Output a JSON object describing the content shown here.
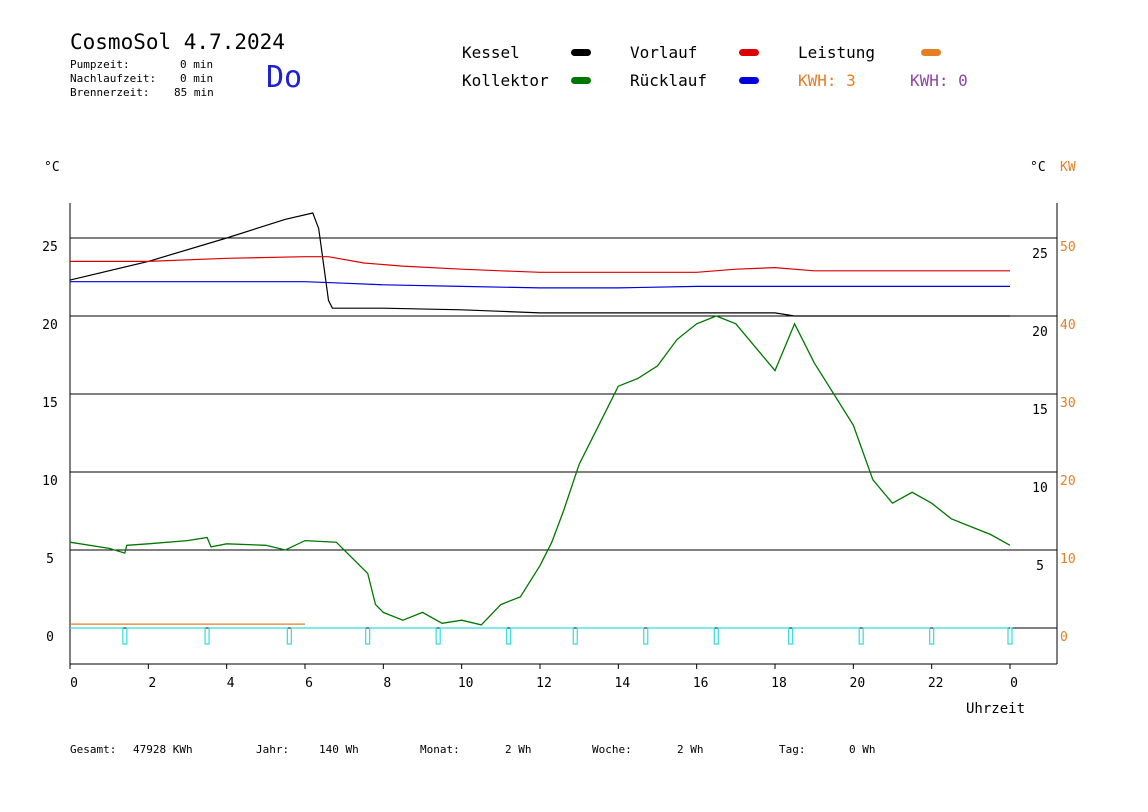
{
  "header": {
    "title": "CosmoSol 4.7.2024",
    "day": "Do",
    "pump_label": "Pumpzeit:",
    "pump_value": "0 min",
    "nachlauf_label": "Nachlaufzeit:",
    "nachlauf_value": "0 min",
    "brenner_label": "Brennerzeit:",
    "brenner_value": "85 min"
  },
  "legend": {
    "kessel": "Kessel",
    "kollektor": "Kollektor",
    "vorlauf": "Vorlauf",
    "ruecklauf": "Rücklauf",
    "leistung": "Leistung",
    "kwh1": "KWH: 3",
    "kwh2": "KWH: 0"
  },
  "colors": {
    "kessel": "#000000",
    "kollektor": "#007700",
    "vorlauf": "#dd0000",
    "ruecklauf": "#0000dd",
    "leistung": "#e67e22",
    "kwh2": "#8e44ad",
    "pump": "#33dddd"
  },
  "footer": {
    "gesamt_label": "Gesamt:",
    "gesamt_value": "47928 KWh",
    "jahr_label": "Jahr:",
    "jahr_value": "140 Wh",
    "monat_label": "Monat:",
    "monat_value": "2 Wh",
    "woche_label": "Woche:",
    "woche_value": "2 Wh",
    "tag_label": "Tag:",
    "tag_value": "0 Wh"
  },
  "chart_data": {
    "type": "line",
    "left_unit": "°C",
    "right_unit_c": "°C",
    "right_unit_kw": "KW",
    "xlabel": "Uhrzeit",
    "xlim": [
      0,
      24
    ],
    "ylim": [
      -2,
      27
    ],
    "grid": true,
    "x_ticks": [
      "0",
      "2",
      "4",
      "6",
      "8",
      "10",
      "12",
      "14",
      "16",
      "18",
      "20",
      "22",
      "0"
    ],
    "left_ticks": [
      "0",
      "5",
      "10",
      "15",
      "20",
      "25"
    ],
    "right_ticks": [
      "5",
      "10",
      "15",
      "20",
      "25"
    ],
    "kw_ticks": [
      "0",
      "10",
      "20",
      "30",
      "40",
      "50"
    ],
    "series": [
      {
        "name": "Kessel",
        "color": "#000000",
        "points": [
          [
            0,
            22.3
          ],
          [
            2,
            23.5
          ],
          [
            4,
            25.0
          ],
          [
            5.5,
            26.2
          ],
          [
            6.2,
            26.6
          ],
          [
            6.35,
            25.6
          ],
          [
            6.6,
            21.0
          ],
          [
            6.7,
            20.5
          ],
          [
            8,
            20.5
          ],
          [
            10,
            20.4
          ],
          [
            11,
            20.3
          ],
          [
            12,
            20.2
          ],
          [
            14,
            20.2
          ],
          [
            16,
            20.2
          ],
          [
            18,
            20.2
          ],
          [
            18.5,
            20.0
          ],
          [
            20,
            20.0
          ],
          [
            22,
            20.0
          ],
          [
            24,
            20.0
          ]
        ]
      },
      {
        "name": "Vorlauf",
        "color": "#dd0000",
        "points": [
          [
            0,
            23.5
          ],
          [
            2,
            23.5
          ],
          [
            4,
            23.7
          ],
          [
            6,
            23.8
          ],
          [
            6.6,
            23.8
          ],
          [
            7.5,
            23.4
          ],
          [
            8.5,
            23.2
          ],
          [
            10,
            23.0
          ],
          [
            11,
            22.9
          ],
          [
            12,
            22.8
          ],
          [
            14,
            22.8
          ],
          [
            16,
            22.8
          ],
          [
            17,
            23.0
          ],
          [
            18,
            23.1
          ],
          [
            19,
            22.9
          ],
          [
            20,
            22.9
          ],
          [
            22,
            22.9
          ],
          [
            24,
            22.9
          ]
        ]
      },
      {
        "name": "Rücklauf",
        "color": "#0000dd",
        "points": [
          [
            0,
            22.2
          ],
          [
            2,
            22.2
          ],
          [
            4,
            22.2
          ],
          [
            6,
            22.2
          ],
          [
            7,
            22.1
          ],
          [
            8,
            22.0
          ],
          [
            10,
            21.9
          ],
          [
            12,
            21.8
          ],
          [
            14,
            21.8
          ],
          [
            16,
            21.9
          ],
          [
            18,
            21.9
          ],
          [
            20,
            21.9
          ],
          [
            22,
            21.9
          ],
          [
            24,
            21.9
          ]
        ]
      },
      {
        "name": "Kollektor",
        "color": "#007700",
        "points": [
          [
            0,
            5.5
          ],
          [
            1,
            5.1
          ],
          [
            1.4,
            4.8
          ],
          [
            1.45,
            5.3
          ],
          [
            2,
            5.4
          ],
          [
            3,
            5.6
          ],
          [
            3.5,
            5.8
          ],
          [
            3.6,
            5.2
          ],
          [
            4,
            5.4
          ],
          [
            5,
            5.3
          ],
          [
            5.5,
            5.0
          ],
          [
            6,
            5.6
          ],
          [
            6.8,
            5.5
          ],
          [
            7.2,
            4.5
          ],
          [
            7.6,
            3.5
          ],
          [
            7.8,
            1.5
          ],
          [
            8,
            1.0
          ],
          [
            8.5,
            0.5
          ],
          [
            9,
            1.0
          ],
          [
            9.5,
            0.3
          ],
          [
            10,
            0.5
          ],
          [
            10.5,
            0.2
          ],
          [
            11,
            1.5
          ],
          [
            11.5,
            2.0
          ],
          [
            12,
            4.0
          ],
          [
            12.3,
            5.5
          ],
          [
            12.6,
            7.5
          ],
          [
            13,
            10.5
          ],
          [
            13.5,
            13.0
          ],
          [
            14,
            15.5
          ],
          [
            14.5,
            16.0
          ],
          [
            15,
            16.8
          ],
          [
            15.5,
            18.5
          ],
          [
            16,
            19.5
          ],
          [
            16.5,
            20.0
          ],
          [
            17,
            19.5
          ],
          [
            17.5,
            18.0
          ],
          [
            18,
            16.5
          ],
          [
            18.5,
            19.5
          ],
          [
            19,
            17.0
          ],
          [
            19.5,
            15.0
          ],
          [
            20,
            13.0
          ],
          [
            20.5,
            9.5
          ],
          [
            21,
            8.0
          ],
          [
            21.5,
            8.7
          ],
          [
            22,
            8.0
          ],
          [
            22.5,
            7.0
          ],
          [
            23,
            6.5
          ],
          [
            23.5,
            6.0
          ],
          [
            24,
            5.3
          ]
        ]
      },
      {
        "name": "Leistung",
        "color": "#e67e22",
        "points": [
          [
            0,
            0.25
          ],
          [
            6,
            0.25
          ]
        ]
      }
    ],
    "pump_pulses": [
      1.4,
      3.5,
      5.6,
      7.6,
      9.4,
      11.2,
      12.9,
      14.7,
      16.5,
      18.4,
      20.2,
      22.0,
      24.0
    ]
  }
}
